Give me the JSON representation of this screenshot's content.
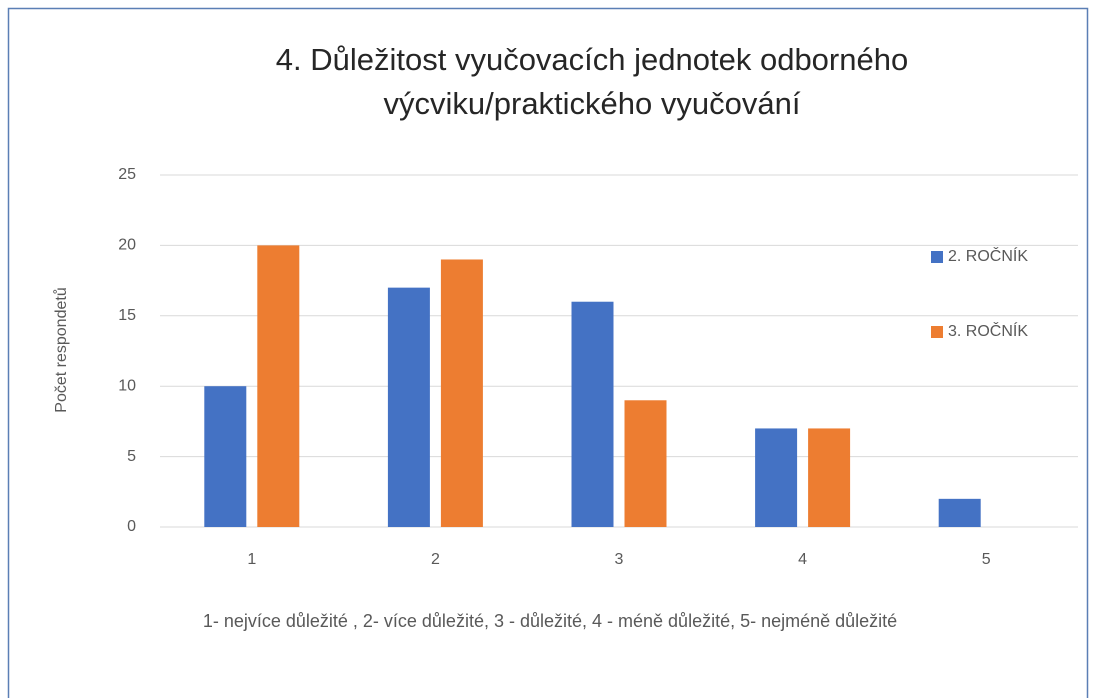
{
  "chart_data": {
    "type": "bar",
    "title": "4. Důležitost vyučovacích jednotek odborného výcviku/praktického vyučování",
    "ylabel": "Počet respondetů",
    "xlabel": "1- nejvíce důležité , 2- více důležité, 3 - důležité, 4 - méně důležité, 5- nejméně důležité",
    "categories": [
      "1",
      "2",
      "3",
      "4",
      "5"
    ],
    "series": [
      {
        "name": "2. ROČNÍK",
        "color": "#4472c4",
        "values": [
          10,
          17,
          16,
          7,
          2
        ]
      },
      {
        "name": "3. ROČNÍK",
        "color": "#ed7d31",
        "values": [
          20,
          19,
          9,
          7,
          0
        ]
      }
    ],
    "ylim": [
      0,
      25
    ],
    "yticks": [
      0,
      5,
      10,
      15,
      20,
      25
    ],
    "grid": true,
    "legend": "right"
  }
}
